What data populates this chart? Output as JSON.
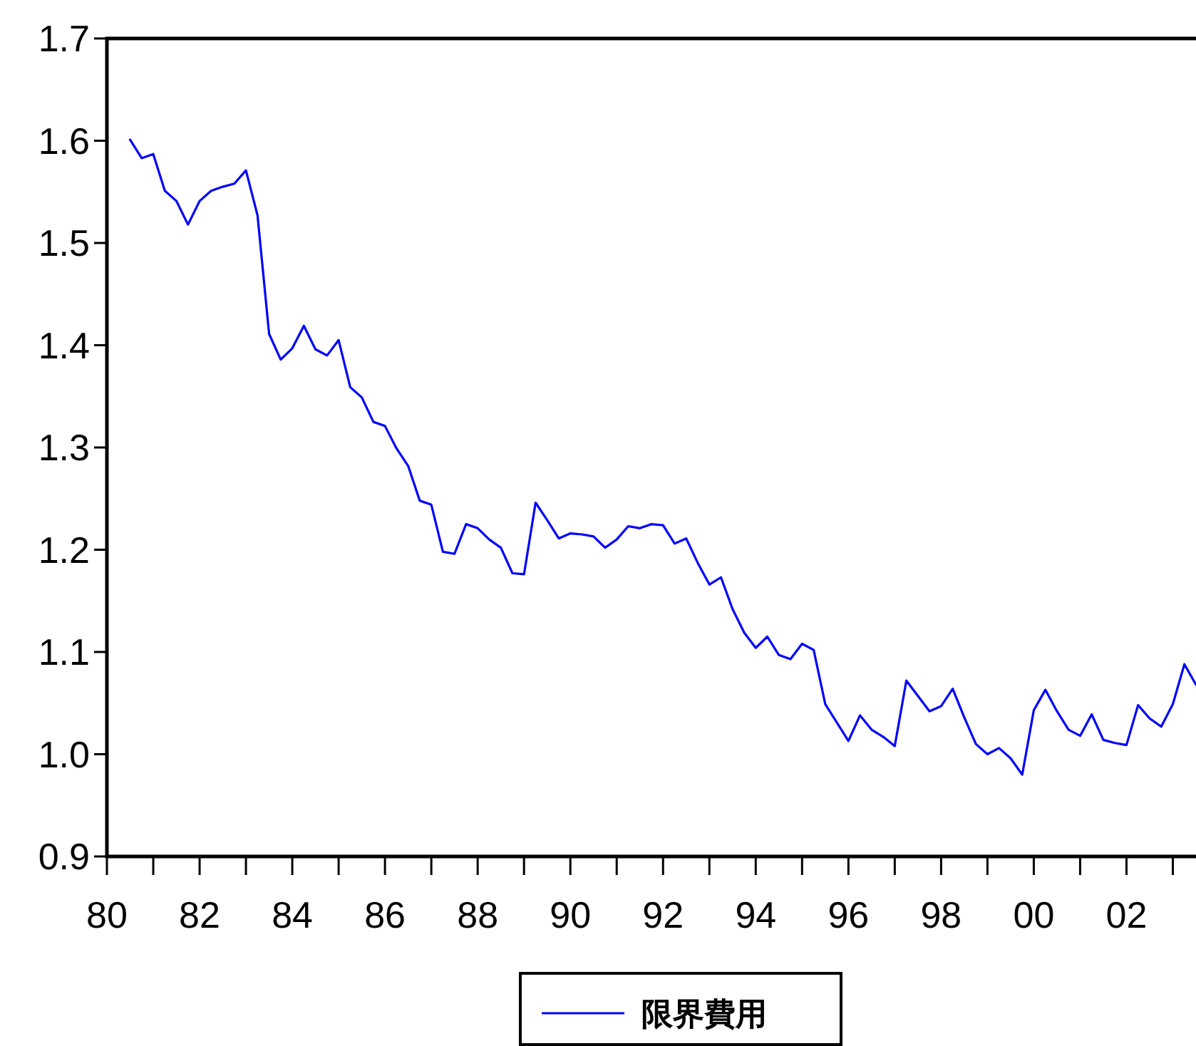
{
  "chart_data": {
    "type": "line",
    "x": [
      1980.5,
      1980.75,
      1981,
      1981.25,
      1981.5,
      1981.75,
      1982,
      1982.25,
      1982.5,
      1982.75,
      1983,
      1983.25,
      1983.5,
      1983.75,
      1984,
      1984.25,
      1984.5,
      1984.75,
      1985,
      1985.25,
      1985.5,
      1985.75,
      1986,
      1986.25,
      1986.5,
      1986.75,
      1987,
      1987.25,
      1987.5,
      1987.75,
      1988,
      1988.25,
      1988.5,
      1988.75,
      1989,
      1989.25,
      1989.5,
      1989.75,
      1990,
      1990.25,
      1990.5,
      1990.75,
      1991,
      1991.25,
      1991.5,
      1991.75,
      1992,
      1992.25,
      1992.5,
      1992.75,
      1993,
      1993.25,
      1993.5,
      1993.75,
      1994,
      1994.25,
      1994.5,
      1994.75,
      1995,
      1995.25,
      1995.5,
      1995.75,
      1996,
      1996.25,
      1996.5,
      1996.75,
      1997,
      1997.25,
      1997.5,
      1997.75,
      1998,
      1998.25,
      1998.5,
      1998.75,
      1999,
      1999.25,
      1999.5,
      1999.75,
      2000,
      2000.25,
      2000.5,
      2000.75,
      2001,
      2001.25,
      2001.5,
      2001.75,
      2002,
      2002.25,
      2002.5,
      2002.75,
      2003,
      2003.25,
      2003.5
    ],
    "series": [
      {
        "name": "限界費用",
        "color": "#0000ff",
        "values": [
          1.601,
          1.583,
          1.587,
          1.551,
          1.541,
          1.518,
          1.541,
          1.551,
          1.555,
          1.558,
          1.571,
          1.527,
          1.411,
          1.386,
          1.397,
          1.419,
          1.396,
          1.39,
          1.405,
          1.359,
          1.349,
          1.325,
          1.321,
          1.299,
          1.282,
          1.248,
          1.244,
          1.198,
          1.196,
          1.225,
          1.221,
          1.21,
          1.202,
          1.177,
          1.176,
          1.246,
          1.229,
          1.211,
          1.216,
          1.215,
          1.213,
          1.202,
          1.21,
          1.223,
          1.221,
          1.225,
          1.224,
          1.206,
          1.211,
          1.187,
          1.166,
          1.173,
          1.142,
          1.119,
          1.104,
          1.115,
          1.097,
          1.093,
          1.108,
          1.102,
          1.049,
          1.031,
          1.013,
          1.038,
          1.024,
          1.017,
          1.008,
          1.072,
          1.057,
          1.042,
          1.047,
          1.064,
          1.036,
          1.01,
          1.0,
          1.006,
          0.996,
          0.98,
          1.043,
          1.063,
          1.042,
          1.024,
          1.018,
          1.039,
          1.014,
          1.011,
          1.009,
          1.048,
          1.035,
          1.027,
          1.049,
          1.088,
          1.068
        ]
      }
    ],
    "xlim": [
      1980,
      2003.5
    ],
    "xticks": [
      {
        "value": 1980,
        "label": "80"
      },
      {
        "value": 1981,
        "label": null
      },
      {
        "value": 1982,
        "label": "82"
      },
      {
        "value": 1983,
        "label": null
      },
      {
        "value": 1984,
        "label": "84"
      },
      {
        "value": 1985,
        "label": null
      },
      {
        "value": 1986,
        "label": "86"
      },
      {
        "value": 1987,
        "label": null
      },
      {
        "value": 1988,
        "label": "88"
      },
      {
        "value": 1989,
        "label": null
      },
      {
        "value": 1990,
        "label": "90"
      },
      {
        "value": 1991,
        "label": null
      },
      {
        "value": 1992,
        "label": "92"
      },
      {
        "value": 1993,
        "label": null
      },
      {
        "value": 1994,
        "label": "94"
      },
      {
        "value": 1995,
        "label": null
      },
      {
        "value": 1996,
        "label": "96"
      },
      {
        "value": 1997,
        "label": null
      },
      {
        "value": 1998,
        "label": "98"
      },
      {
        "value": 1999,
        "label": null
      },
      {
        "value": 2000,
        "label": "00"
      },
      {
        "value": 2001,
        "label": null
      },
      {
        "value": 2002,
        "label": "02"
      },
      {
        "value": 2003,
        "label": null
      }
    ],
    "ylim": [
      0.9,
      1.7
    ],
    "yticks": [
      {
        "value": 0.9,
        "label": "0.9"
      },
      {
        "value": 1.0,
        "label": "1.0"
      },
      {
        "value": 1.1,
        "label": "1.1"
      },
      {
        "value": 1.2,
        "label": "1.2"
      },
      {
        "value": 1.3,
        "label": "1.3"
      },
      {
        "value": 1.4,
        "label": "1.4"
      },
      {
        "value": 1.5,
        "label": "1.5"
      },
      {
        "value": 1.6,
        "label": "1.6"
      },
      {
        "value": 1.7,
        "label": "1.7"
      }
    ],
    "grid": false,
    "legend": "bottom",
    "marker": "none",
    "line_style": "solid"
  }
}
